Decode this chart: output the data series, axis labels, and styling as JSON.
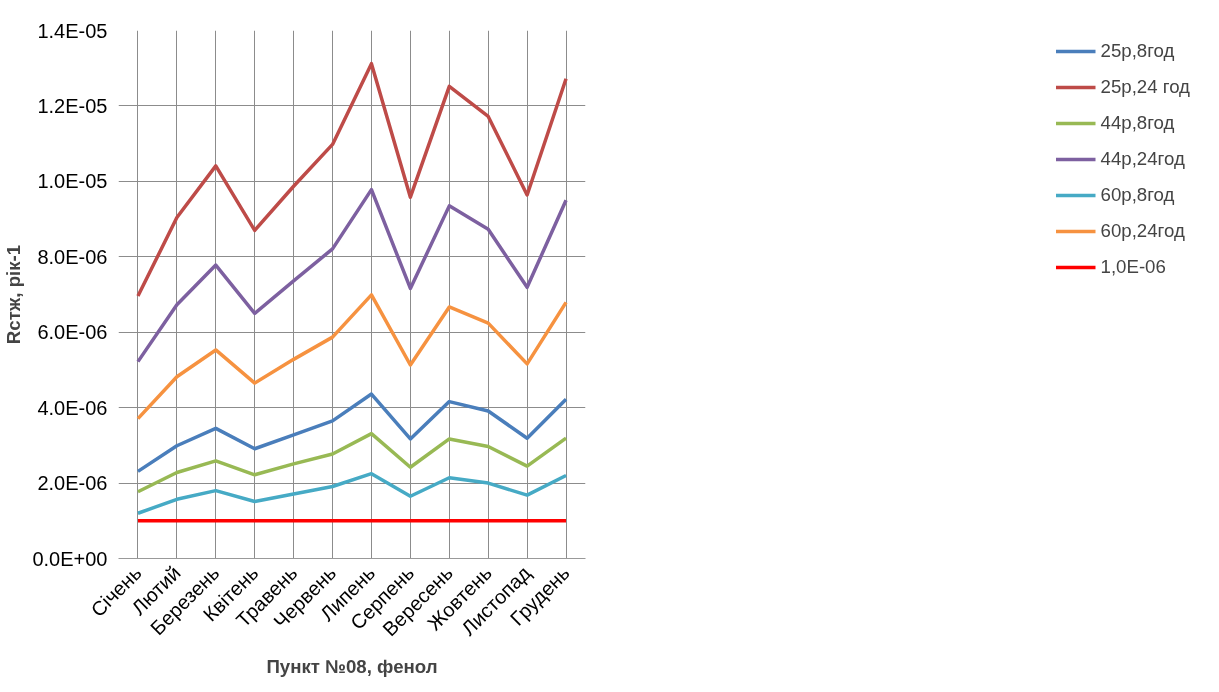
{
  "chart_data": {
    "type": "line",
    "xlabel": "Пункт №08, фенол",
    "ylabel": "Rстж, рік-1",
    "categories": [
      "Січень",
      "Лютий",
      "Березень",
      "Квітень",
      "Травень",
      "Червень",
      "Липень",
      "Серпень",
      "Вересень",
      "Жовтень",
      "Листопад",
      "Грудень"
    ],
    "series": [
      {
        "name": "25р,8год",
        "color": "#4a7ebb",
        "values": [
          2.31e-06,
          2.99e-06,
          3.45e-06,
          2.91e-06,
          3.28e-06,
          3.65e-06,
          4.36e-06,
          3.17e-06,
          4.16e-06,
          3.91e-06,
          3.19e-06,
          4.22e-06
        ]
      },
      {
        "name": "25р,24 год",
        "color": "#be4b48",
        "values": [
          6.96e-06,
          9.04e-06,
          1.041e-05,
          8.7e-06,
          9.87e-06,
          1.098e-05,
          1.312e-05,
          9.58e-06,
          1.252e-05,
          1.172e-05,
          9.64e-06,
          1.272e-05
        ]
      },
      {
        "name": "44р,8год",
        "color": "#98b954",
        "values": [
          1.77e-06,
          2.28e-06,
          2.59e-06,
          2.22e-06,
          2.51e-06,
          2.77e-06,
          3.31e-06,
          2.42e-06,
          3.17e-06,
          2.97e-06,
          2.45e-06,
          3.19e-06
        ]
      },
      {
        "name": "44р,24год",
        "color": "#7d60a0",
        "values": [
          5.22e-06,
          6.73e-06,
          7.78e-06,
          6.5e-06,
          7.36e-06,
          8.21e-06,
          9.78e-06,
          7.16e-06,
          9.35e-06,
          8.73e-06,
          7.19e-06,
          9.5e-06
        ]
      },
      {
        "name": "60р,8год",
        "color": "#46aac5",
        "values": [
          1.2e-06,
          1.57e-06,
          1.8e-06,
          1.51e-06,
          1.71e-06,
          1.91e-06,
          2.25e-06,
          1.65e-06,
          2.14e-06,
          2e-06,
          1.68e-06,
          2.2e-06
        ]
      },
      {
        "name": "60р,24год",
        "color": "#f69240",
        "values": [
          3.71e-06,
          4.82e-06,
          5.53e-06,
          4.65e-06,
          5.28e-06,
          5.87e-06,
          6.99e-06,
          5.13e-06,
          6.67e-06,
          6.24e-06,
          5.16e-06,
          6.79e-06
        ]
      },
      {
        "name": "1,0Е-06",
        "color": "#ff0000",
        "values": [
          1e-06,
          1e-06,
          1e-06,
          1e-06,
          1e-06,
          1e-06,
          1e-06,
          1e-06,
          1e-06,
          1e-06,
          1e-06,
          1e-06
        ]
      }
    ],
    "ylim": [
      0,
      1.4e-05
    ],
    "yticks": [
      {
        "value": 0,
        "label": "0.0E+00"
      },
      {
        "value": 2e-06,
        "label": "2.0E-06"
      },
      {
        "value": 4e-06,
        "label": "4.0E-06"
      },
      {
        "value": 6e-06,
        "label": "6.0E-06"
      },
      {
        "value": 8e-06,
        "label": "8.0E-06"
      },
      {
        "value": 1e-05,
        "label": "1.0E-05"
      },
      {
        "value": 1.2e-05,
        "label": "1.2E-05"
      },
      {
        "value": 1.4e-05,
        "label": "1.4E-05"
      }
    ],
    "grid": true,
    "legend": "right",
    "marker": "none",
    "line_style": "solid"
  }
}
